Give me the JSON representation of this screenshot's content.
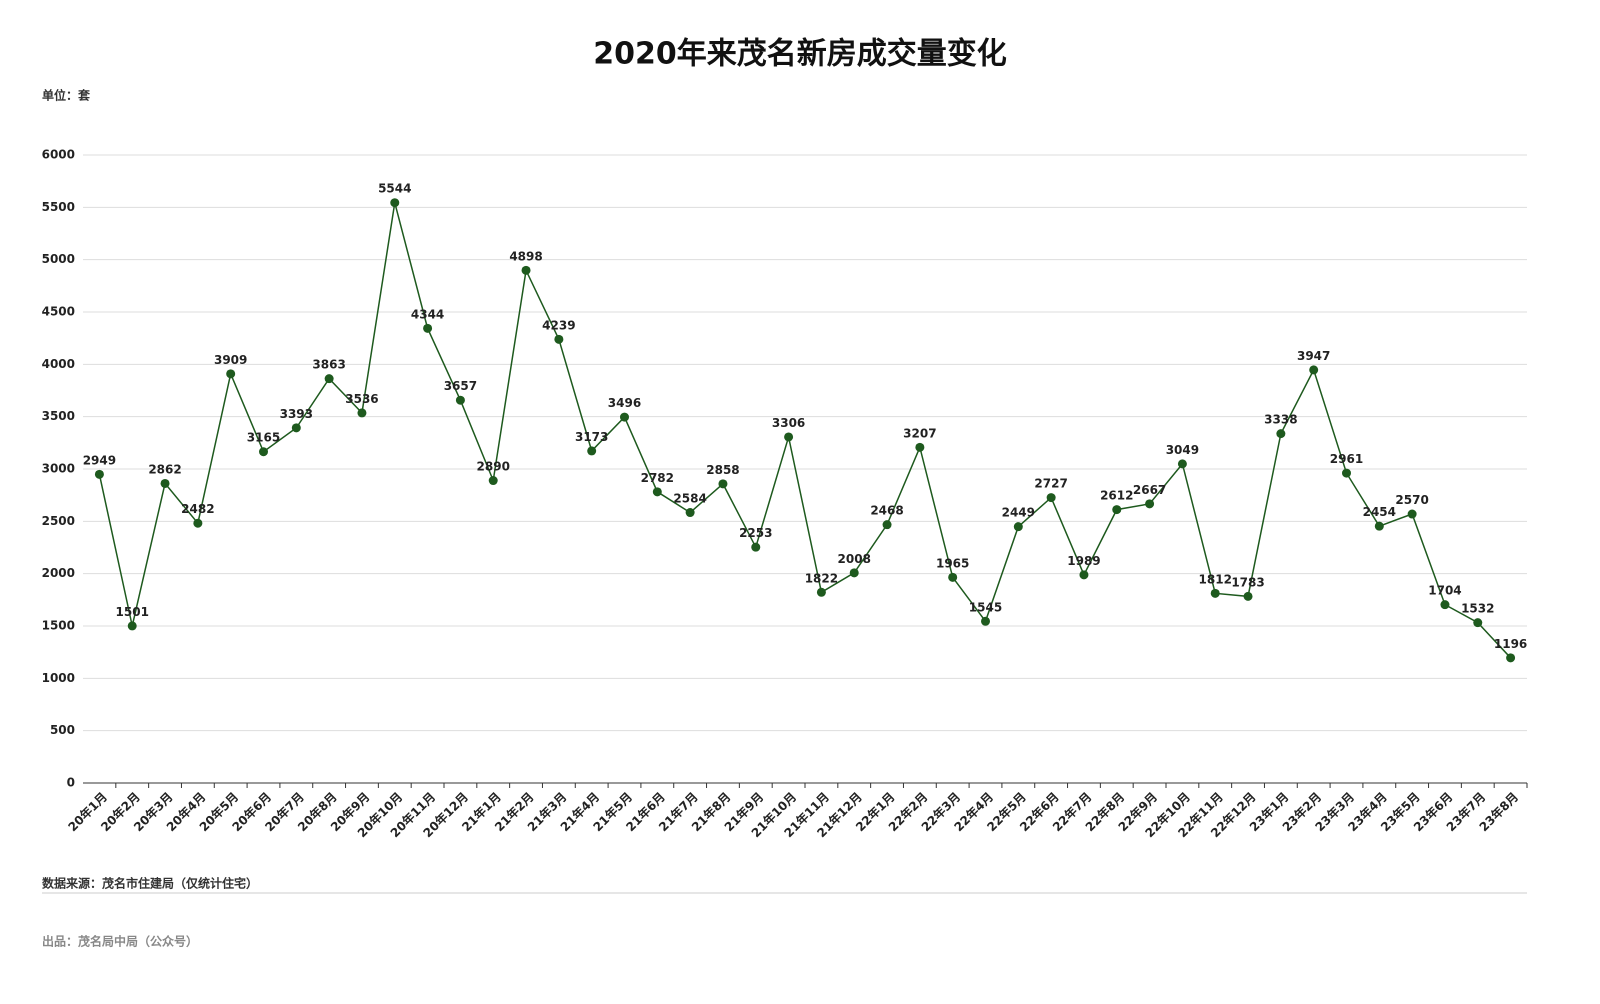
{
  "chart_data": {
    "type": "line",
    "title": "2020年来茂名新房成交量变化",
    "unit_label": "单位：套",
    "source": "数据来源：茂名市住建局（仅统计住宅）",
    "producer": "出品：茂名局中局（公众号）",
    "categories": [
      "20年1月",
      "20年2月",
      "20年3月",
      "20年4月",
      "20年5月",
      "20年6月",
      "20年7月",
      "20年8月",
      "20年9月",
      "20年10月",
      "20年11月",
      "20年12月",
      "21年1月",
      "21年2月",
      "21年3月",
      "21年4月",
      "21年5月",
      "21年6月",
      "21年7月",
      "21年8月",
      "21年9月",
      "21年10月",
      "21年11月",
      "21年12月",
      "22年1月",
      "22年2月",
      "22年3月",
      "22年4月",
      "22年5月",
      "22年6月",
      "22年7月",
      "22年8月",
      "22年9月",
      "22年10月",
      "22年11月",
      "22年12月",
      "23年1月",
      "23年2月",
      "23年3月",
      "23年4月",
      "23年5月",
      "23年6月",
      "23年7月",
      "23年8月"
    ],
    "values": [
      2949,
      1501,
      2862,
      2482,
      3909,
      3165,
      3393,
      3863,
      3536,
      5544,
      4344,
      3657,
      2890,
      4898,
      4239,
      3173,
      3496,
      2782,
      2584,
      2858,
      2253,
      3306,
      1822,
      2008,
      2468,
      3207,
      1965,
      1545,
      2449,
      2727,
      1989,
      2612,
      2667,
      3049,
      1812,
      1783,
      3338,
      3947,
      2961,
      2454,
      2570,
      1704,
      1532,
      1196
    ],
    "color": "#1e5a1e",
    "ylim": [
      0,
      6000
    ],
    "yticks": [
      0,
      500,
      1000,
      1500,
      2000,
      2500,
      3000,
      3500,
      4000,
      4500,
      5000,
      5500,
      6000
    ],
    "grid": true
  }
}
